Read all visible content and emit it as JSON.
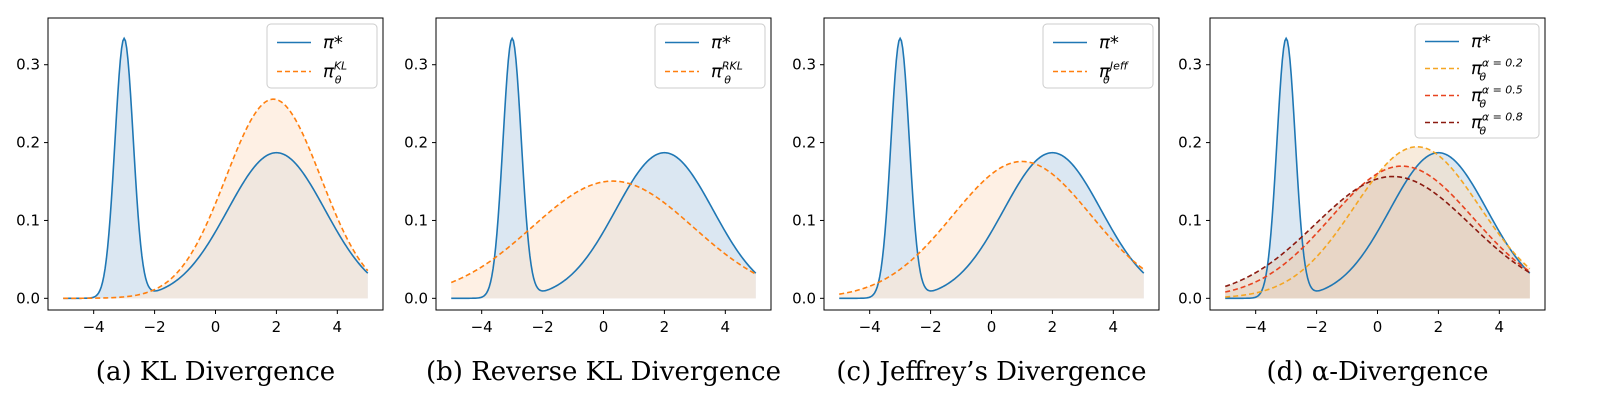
{
  "chart_data": [
    {
      "type": "area",
      "caption": "(a) KL Divergence",
      "xlim": [
        -5.5,
        5.5
      ],
      "ylim": [
        -0.015,
        0.36
      ],
      "xticks": [
        -4,
        -2,
        0,
        2,
        4
      ],
      "yticks": [
        0.0,
        0.1,
        0.2,
        0.3
      ],
      "grid": false,
      "legend_position": "top-right",
      "series": [
        {
          "name": "π*",
          "name_sup": "",
          "color": "#1f77b4",
          "fill": "#dbe7f2",
          "dash": false,
          "components": [
            {
              "w": 0.25,
              "mu": -3.0,
              "sigma": 0.3
            },
            {
              "w": 0.75,
              "mu": 2.0,
              "sigma": 1.6
            }
          ]
        },
        {
          "name": "π",
          "name_sub": "θ",
          "name_sup": "KL",
          "color": "#ff7f0e",
          "fill": "#fde7d3",
          "dash": true,
          "components": [
            {
              "w": 1.0,
              "mu": 1.9,
              "sigma": 1.56
            }
          ]
        }
      ]
    },
    {
      "type": "area",
      "caption": "(b) Reverse KL Divergence",
      "xlim": [
        -5.5,
        5.5
      ],
      "ylim": [
        -0.015,
        0.36
      ],
      "xticks": [
        -4,
        -2,
        0,
        2,
        4
      ],
      "yticks": [
        0.0,
        0.1,
        0.2,
        0.3
      ],
      "grid": false,
      "legend_position": "top-right",
      "series": [
        {
          "name": "π*",
          "name_sup": "",
          "color": "#1f77b4",
          "fill": "#dbe7f2",
          "dash": false,
          "components": [
            {
              "w": 0.25,
              "mu": -3.0,
              "sigma": 0.3
            },
            {
              "w": 0.75,
              "mu": 2.0,
              "sigma": 1.6
            }
          ]
        },
        {
          "name": "π",
          "name_sub": "θ",
          "name_sup": "RKL",
          "color": "#ff7f0e",
          "fill": "#fde7d3",
          "dash": true,
          "components": [
            {
              "w": 1.0,
              "mu": 0.3,
              "sigma": 2.65
            }
          ]
        }
      ]
    },
    {
      "type": "area",
      "caption": "(c) Jeffrey’s Divergence",
      "xlim": [
        -5.5,
        5.5
      ],
      "ylim": [
        -0.015,
        0.36
      ],
      "xticks": [
        -4,
        -2,
        0,
        2,
        4
      ],
      "yticks": [
        0.0,
        0.1,
        0.2,
        0.3
      ],
      "grid": false,
      "legend_position": "top-right",
      "series": [
        {
          "name": "π*",
          "name_sup": "",
          "color": "#1f77b4",
          "fill": "#dbe7f2",
          "dash": false,
          "components": [
            {
              "w": 0.25,
              "mu": -3.0,
              "sigma": 0.3
            },
            {
              "w": 0.75,
              "mu": 2.0,
              "sigma": 1.6
            }
          ]
        },
        {
          "name": "π",
          "name_sub": "θ",
          "name_sup": "Jeff",
          "color": "#ff7f0e",
          "fill": "#fde7d3",
          "dash": true,
          "components": [
            {
              "w": 1.0,
              "mu": 1.0,
              "sigma": 2.27
            }
          ]
        }
      ]
    },
    {
      "type": "area",
      "caption": "(d) α-Divergence",
      "xlim": [
        -5.5,
        5.5
      ],
      "ylim": [
        -0.015,
        0.36
      ],
      "xticks": [
        -4,
        -2,
        0,
        2,
        4
      ],
      "yticks": [
        0.0,
        0.1,
        0.2,
        0.3
      ],
      "grid": false,
      "legend_position": "top-right",
      "series": [
        {
          "name": "π*",
          "name_sup": "",
          "color": "#1f77b4",
          "fill": "#dbe7f2",
          "dash": false,
          "components": [
            {
              "w": 0.25,
              "mu": -3.0,
              "sigma": 0.3
            },
            {
              "w": 0.75,
              "mu": 2.0,
              "sigma": 1.6
            }
          ]
        },
        {
          "name": "π",
          "name_sub": "θ",
          "name_sup": "α = 0.2",
          "color": "#f5a623",
          "fill": "#f3dfc7",
          "dash": true,
          "components": [
            {
              "w": 1.0,
              "mu": 1.3,
              "sigma": 2.05
            }
          ]
        },
        {
          "name": "π",
          "name_sub": "θ",
          "name_sup": "α = 0.5",
          "color": "#e8431f",
          "fill": "#ecd6c5",
          "dash": true,
          "components": [
            {
              "w": 1.0,
              "mu": 0.8,
              "sigma": 2.35
            }
          ]
        },
        {
          "name": "π",
          "name_sub": "θ",
          "name_sup": "α = 0.8",
          "color": "#8b1a10",
          "fill": "#e3d2c2",
          "dash": true,
          "components": [
            {
              "w": 1.0,
              "mu": 0.5,
              "sigma": 2.55
            }
          ]
        }
      ]
    }
  ]
}
